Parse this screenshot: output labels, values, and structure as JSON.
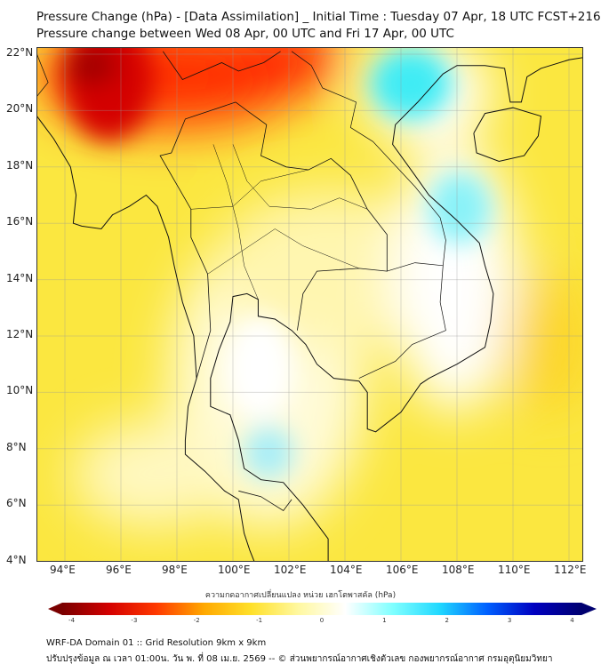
{
  "title": {
    "line1": "Pressure Change (hPa) - [Data Assimilation] _ Initial Time : Tuesday 07 Apr, 18 UTC FCST+216",
    "line2": "Pressure change between Wed 08 Apr, 00 UTC and Fri 17 Apr, 00 UTC"
  },
  "map": {
    "lat_ticks": [
      "22°N",
      "20°N",
      "18°N",
      "16°N",
      "14°N",
      "12°N",
      "10°N",
      "8°N",
      "6°N",
      "4°N"
    ],
    "lat_values": [
      22,
      20,
      18,
      16,
      14,
      12,
      10,
      8,
      6,
      4
    ],
    "lon_ticks": [
      "94°E",
      "96°E",
      "98°E",
      "100°E",
      "102°E",
      "104°E",
      "106°E",
      "108°E",
      "110°E",
      "112°E"
    ],
    "lon_values": [
      94,
      96,
      98,
      100,
      102,
      104,
      106,
      108,
      110,
      112
    ],
    "extent": {
      "lon": [
        93,
        112.5
      ],
      "lat": [
        4,
        22.1
      ]
    }
  },
  "colorbar": {
    "label": "ความกดอากาศเปลี่ยนแปลง หน่วย เฮกโตพาสคัล (hPa)",
    "ticks": [
      "-4",
      "-3",
      "-2",
      "-1",
      "0",
      "1",
      "2",
      "3",
      "4"
    ],
    "tick_values": [
      -4,
      -3,
      -2,
      -1,
      0,
      1,
      2,
      3,
      4
    ],
    "colors": [
      "#7a0000",
      "#d40000",
      "#ff3a00",
      "#ffa800",
      "#ffe02a",
      "#fff8a0",
      "#ffffff",
      "#80ffff",
      "#20d8ff",
      "#0060ff",
      "#0000c0",
      "#000070"
    ]
  },
  "footer": {
    "line1": "WRF-DA Domain 01 :: Grid Resolution 9km x 9km",
    "line2": "ปรับปรุงข้อมูล ณ เวลา 01:00น. วัน พ. ที่ 08 เม.ย. 2569 -- © ส่วนพยากรณ์อากาศเชิงตัวเลข กองพยากรณ์อากาศ กรมอุตุนิยมวิทยา"
  }
}
